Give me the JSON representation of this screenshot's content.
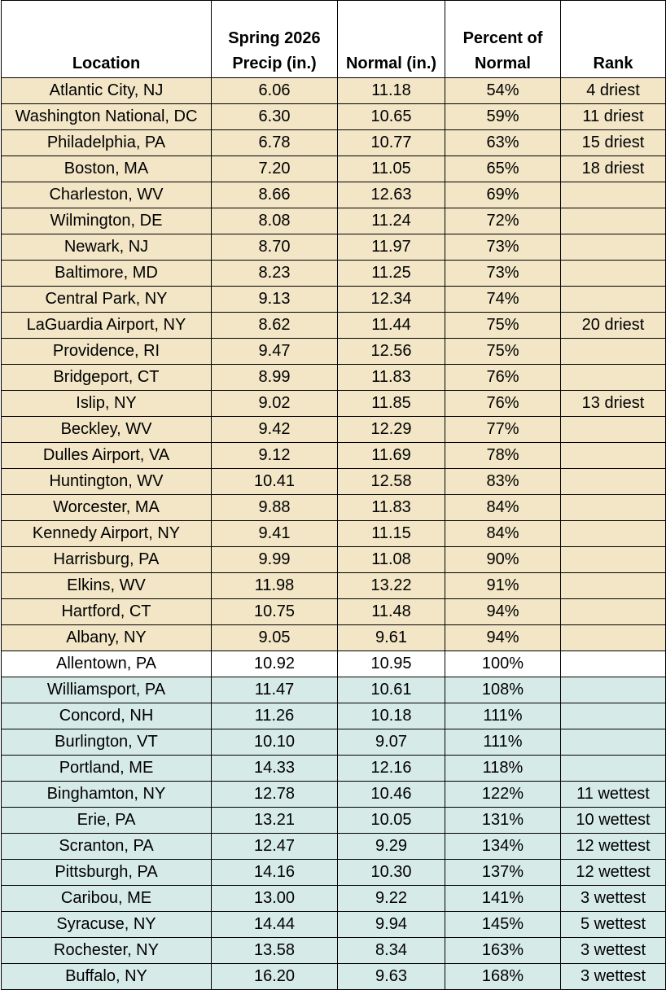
{
  "colors": {
    "dry": "#f2e6c6",
    "neutral": "#ffffff",
    "wet": "#d6ebe7"
  },
  "headers": {
    "location": "Location",
    "precip_line1": "Spring 2026",
    "precip_line2": "Precip (in.)",
    "normal": "Normal (in.)",
    "percent_line1": "Percent of",
    "percent_line2": "Normal",
    "rank": "Rank"
  },
  "rows": [
    {
      "location": "Atlantic City, NJ",
      "precip": "6.06",
      "normal": "11.18",
      "percent": "54%",
      "rank": "4 driest",
      "category": "dry"
    },
    {
      "location": "Washington National, DC",
      "precip": "6.30",
      "normal": "10.65",
      "percent": "59%",
      "rank": "11 driest",
      "category": "dry"
    },
    {
      "location": "Philadelphia, PA",
      "precip": "6.78",
      "normal": "10.77",
      "percent": "63%",
      "rank": "15 driest",
      "category": "dry"
    },
    {
      "location": "Boston, MA",
      "precip": "7.20",
      "normal": "11.05",
      "percent": "65%",
      "rank": "18 driest",
      "category": "dry"
    },
    {
      "location": "Charleston, WV",
      "precip": "8.66",
      "normal": "12.63",
      "percent": "69%",
      "rank": "",
      "category": "dry"
    },
    {
      "location": "Wilmington, DE",
      "precip": "8.08",
      "normal": "11.24",
      "percent": "72%",
      "rank": "",
      "category": "dry"
    },
    {
      "location": "Newark, NJ",
      "precip": "8.70",
      "normal": "11.97",
      "percent": "73%",
      "rank": "",
      "category": "dry"
    },
    {
      "location": "Baltimore, MD",
      "precip": "8.23",
      "normal": "11.25",
      "percent": "73%",
      "rank": "",
      "category": "dry"
    },
    {
      "location": "Central Park, NY",
      "precip": "9.13",
      "normal": "12.34",
      "percent": "74%",
      "rank": "",
      "category": "dry"
    },
    {
      "location": "LaGuardia Airport, NY",
      "precip": "8.62",
      "normal": "11.44",
      "percent": "75%",
      "rank": "20 driest",
      "category": "dry"
    },
    {
      "location": "Providence, RI",
      "precip": "9.47",
      "normal": "12.56",
      "percent": "75%",
      "rank": "",
      "category": "dry"
    },
    {
      "location": "Bridgeport, CT",
      "precip": "8.99",
      "normal": "11.83",
      "percent": "76%",
      "rank": "",
      "category": "dry"
    },
    {
      "location": "Islip, NY",
      "precip": "9.02",
      "normal": "11.85",
      "percent": "76%",
      "rank": "13 driest",
      "category": "dry"
    },
    {
      "location": "Beckley, WV",
      "precip": "9.42",
      "normal": "12.29",
      "percent": "77%",
      "rank": "",
      "category": "dry"
    },
    {
      "location": "Dulles Airport, VA",
      "precip": "9.12",
      "normal": "11.69",
      "percent": "78%",
      "rank": "",
      "category": "dry"
    },
    {
      "location": "Huntington, WV",
      "precip": "10.41",
      "normal": "12.58",
      "percent": "83%",
      "rank": "",
      "category": "dry"
    },
    {
      "location": "Worcester, MA",
      "precip": "9.88",
      "normal": "11.83",
      "percent": "84%",
      "rank": "",
      "category": "dry"
    },
    {
      "location": "Kennedy Airport, NY",
      "precip": "9.41",
      "normal": "11.15",
      "percent": "84%",
      "rank": "",
      "category": "dry"
    },
    {
      "location": "Harrisburg, PA",
      "precip": "9.99",
      "normal": "11.08",
      "percent": "90%",
      "rank": "",
      "category": "dry"
    },
    {
      "location": "Elkins, WV",
      "precip": "11.98",
      "normal": "13.22",
      "percent": "91%",
      "rank": "",
      "category": "dry"
    },
    {
      "location": "Hartford, CT",
      "precip": "10.75",
      "normal": "11.48",
      "percent": "94%",
      "rank": "",
      "category": "dry"
    },
    {
      "location": "Albany, NY",
      "precip": "9.05",
      "normal": "9.61",
      "percent": "94%",
      "rank": "",
      "category": "dry"
    },
    {
      "location": "Allentown, PA",
      "precip": "10.92",
      "normal": "10.95",
      "percent": "100%",
      "rank": "",
      "category": "neutral"
    },
    {
      "location": "Williamsport, PA",
      "precip": "11.47",
      "normal": "10.61",
      "percent": "108%",
      "rank": "",
      "category": "wet"
    },
    {
      "location": "Concord, NH",
      "precip": "11.26",
      "normal": "10.18",
      "percent": "111%",
      "rank": "",
      "category": "wet"
    },
    {
      "location": "Burlington, VT",
      "precip": "10.10",
      "normal": "9.07",
      "percent": "111%",
      "rank": "",
      "category": "wet"
    },
    {
      "location": "Portland, ME",
      "precip": "14.33",
      "normal": "12.16",
      "percent": "118%",
      "rank": "",
      "category": "wet"
    },
    {
      "location": "Binghamton, NY",
      "precip": "12.78",
      "normal": "10.46",
      "percent": "122%",
      "rank": "11 wettest",
      "category": "wet"
    },
    {
      "location": "Erie, PA",
      "precip": "13.21",
      "normal": "10.05",
      "percent": "131%",
      "rank": "10 wettest",
      "category": "wet"
    },
    {
      "location": "Scranton, PA",
      "precip": "12.47",
      "normal": "9.29",
      "percent": "134%",
      "rank": "12 wettest",
      "category": "wet"
    },
    {
      "location": "Pittsburgh, PA",
      "precip": "14.16",
      "normal": "10.30",
      "percent": "137%",
      "rank": "12 wettest",
      "category": "wet"
    },
    {
      "location": "Caribou, ME",
      "precip": "13.00",
      "normal": "9.22",
      "percent": "141%",
      "rank": "3 wettest",
      "category": "wet"
    },
    {
      "location": "Syracuse, NY",
      "precip": "14.44",
      "normal": "9.94",
      "percent": "145%",
      "rank": "5 wettest",
      "category": "wet"
    },
    {
      "location": "Rochester, NY",
      "precip": "13.58",
      "normal": "8.34",
      "percent": "163%",
      "rank": "3 wettest",
      "category": "wet"
    },
    {
      "location": "Buffalo, NY",
      "precip": "16.20",
      "normal": "9.63",
      "percent": "168%",
      "rank": "3 wettest",
      "category": "wet"
    }
  ]
}
